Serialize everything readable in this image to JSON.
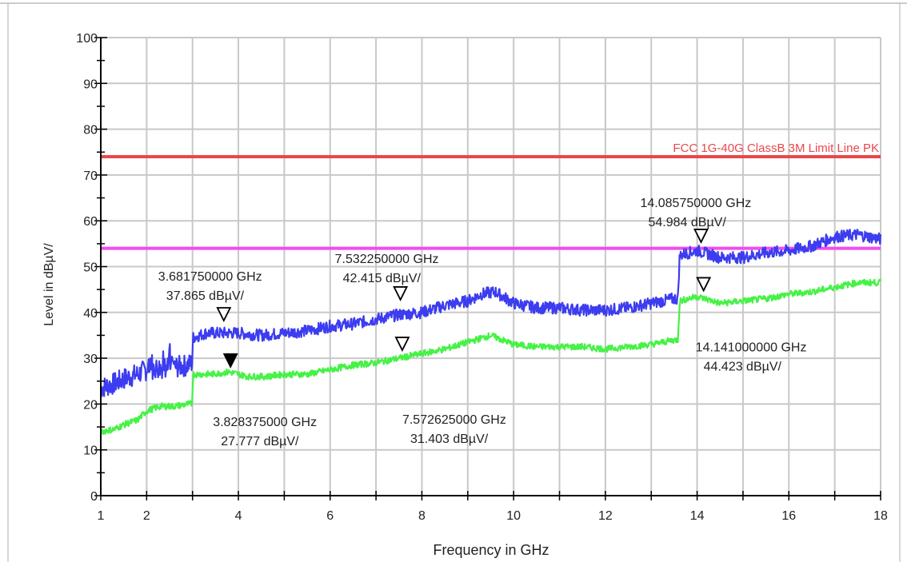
{
  "chart_data": {
    "type": "line",
    "title": "",
    "xlabel": "Frequency in GHz",
    "ylabel": "Level in dBµV/",
    "xlim": [
      1,
      18
    ],
    "ylim": [
      0,
      100
    ],
    "x_ticks": [
      1,
      2,
      4,
      6,
      8,
      10,
      12,
      14,
      16,
      18
    ],
    "x_tick_labels": [
      "1",
      "2",
      "4",
      "6",
      "8",
      "10",
      "12",
      "14",
      "16",
      "18"
    ],
    "y_ticks": [
      0,
      10,
      20,
      30,
      40,
      50,
      60,
      70,
      80,
      90,
      100
    ],
    "y_tick_labels": [
      "0",
      "10",
      "20",
      "30",
      "40",
      "50",
      "60",
      "70",
      "80",
      "90",
      "100"
    ],
    "grid": true,
    "limit_lines": [
      {
        "name": "FCC 1G-40G ClassB 3M Limit Line PK",
        "label": "FCC 1G-40G ClassB 3M Limit Line PK",
        "y": 74,
        "color": "#e8474b"
      },
      {
        "y": 54,
        "color": "#f24cf0"
      }
    ],
    "series": [
      {
        "color": "#3c3cf0",
        "x": [
          1.0,
          1.3,
          1.5,
          1.8,
          2.0,
          2.3,
          2.6,
          2.9,
          2.99,
          3.01,
          3.3,
          3.7,
          4.0,
          4.5,
          5.0,
          5.5,
          6.0,
          6.5,
          7.0,
          7.5,
          8.0,
          8.5,
          9.0,
          9.3,
          9.6,
          10.0,
          10.5,
          11.0,
          11.5,
          12.0,
          12.5,
          13.0,
          13.5,
          13.58,
          13.62,
          14.0,
          14.5,
          15.0,
          15.5,
          16.0,
          16.5,
          17.0,
          17.5,
          18.0
        ],
        "y": [
          23.5,
          24.5,
          25.5,
          26.5,
          27.5,
          28.0,
          28.0,
          28.5,
          29.0,
          34.5,
          35.5,
          35.5,
          35.5,
          35.0,
          35.5,
          36.0,
          37.0,
          37.5,
          38.5,
          39.5,
          40.0,
          41.5,
          42.5,
          44.0,
          44.5,
          42.0,
          41.0,
          41.0,
          40.5,
          40.5,
          41.0,
          42.0,
          43.0,
          43.0,
          52.5,
          53.5,
          52.0,
          52.0,
          53.0,
          53.5,
          54.5,
          56.5,
          57.0,
          56.0
        ]
      },
      {
        "color": "#45f245",
        "x": [
          1.0,
          1.3,
          1.5,
          1.8,
          2.0,
          2.3,
          2.6,
          2.9,
          2.99,
          3.01,
          3.4,
          3.8,
          4.2,
          4.6,
          5.0,
          5.5,
          6.0,
          6.5,
          7.0,
          7.5,
          8.0,
          8.5,
          9.0,
          9.5,
          10.0,
          10.5,
          11.0,
          11.5,
          12.0,
          12.5,
          13.0,
          13.5,
          13.58,
          13.62,
          14.0,
          14.5,
          15.0,
          15.5,
          16.0,
          16.5,
          17.0,
          17.5,
          18.0
        ],
        "y": [
          14.0,
          14.5,
          15.5,
          16.5,
          18.5,
          19.5,
          19.5,
          20.0,
          20.0,
          26.5,
          26.5,
          27.0,
          26.0,
          26.0,
          26.5,
          26.5,
          27.5,
          28.5,
          29.0,
          30.0,
          31.0,
          32.0,
          33.5,
          35.0,
          33.0,
          32.5,
          32.5,
          32.5,
          32.0,
          32.5,
          33.0,
          34.0,
          34.0,
          42.5,
          43.5,
          42.0,
          42.5,
          43.0,
          44.0,
          44.5,
          45.5,
          46.5,
          46.5
        ]
      }
    ],
    "markers": [
      {
        "x": 3.68175,
        "y": 37.865,
        "freq_label": "3.681750000 GHz",
        "level_label": "37.865 dBµV/",
        "filled": false
      },
      {
        "x": 3.828375,
        "y": 27.777,
        "freq_label": "3.828375000 GHz",
        "level_label": "27.777 dBµV/",
        "filled": true
      },
      {
        "x": 7.53225,
        "y": 42.415,
        "freq_label": "7.532250000 GHz",
        "level_label": "42.415 dBµV/",
        "filled": false
      },
      {
        "x": 7.572625,
        "y": 31.403,
        "freq_label": "7.572625000 GHz",
        "level_label": "31.403 dBµV/",
        "filled": false
      },
      {
        "x": 14.08575,
        "y": 54.984,
        "freq_label": "14.085750000 GHz",
        "level_label": "54.984 dBµV/",
        "filled": false
      },
      {
        "x": 14.141,
        "y": 44.423,
        "freq_label": "14.141000000 GHz",
        "level_label": "44.423 dBµV/",
        "filled": false
      }
    ]
  }
}
